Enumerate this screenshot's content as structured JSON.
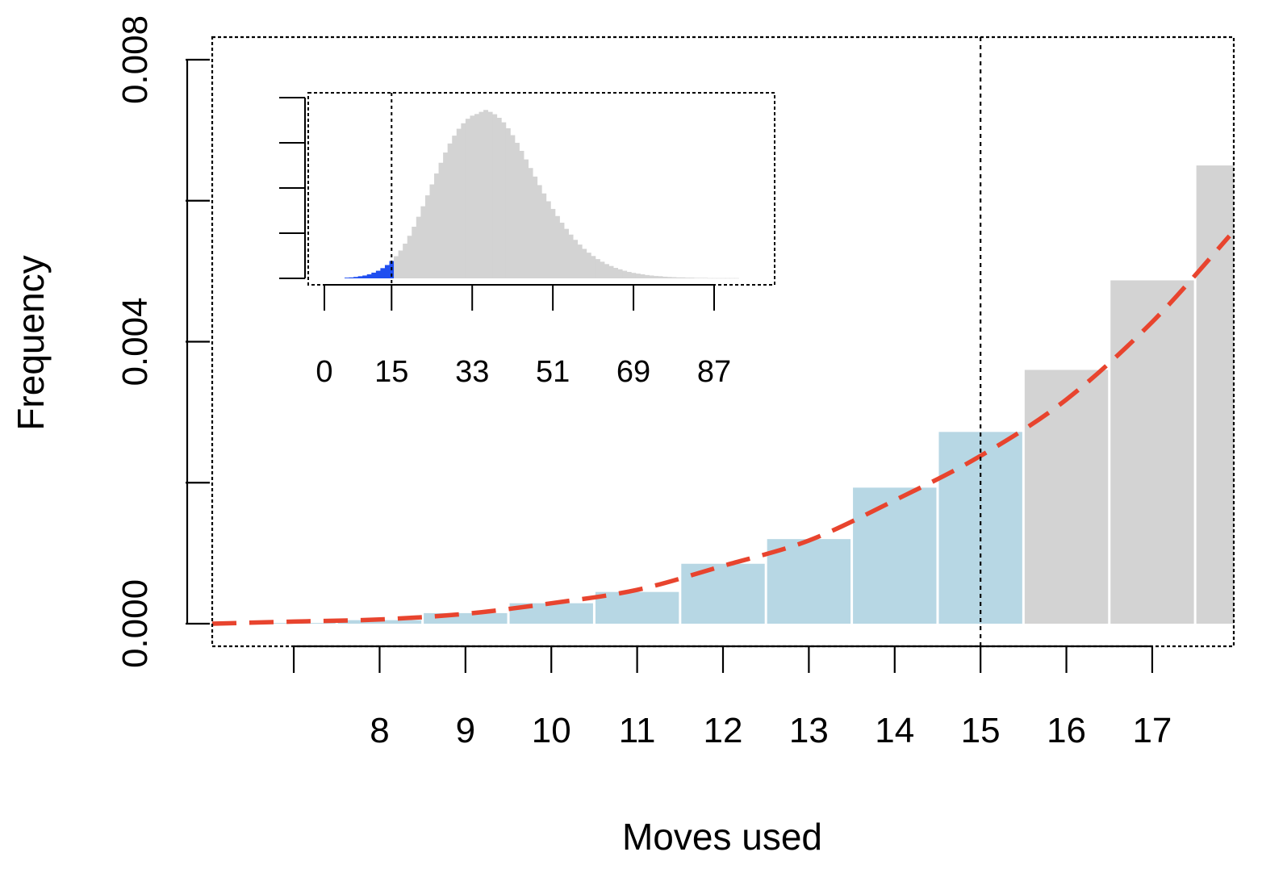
{
  "chart_data": [
    {
      "type": "bar",
      "xlabel": "Moves used",
      "ylabel": "Frequency",
      "xlim": [
        6.05,
        17.95
      ],
      "ylim": [
        0,
        0.008
      ],
      "xticks": [
        7,
        8,
        9,
        10,
        11,
        12,
        13,
        14,
        15,
        16,
        17
      ],
      "xtick_labels": [
        "",
        "8",
        "9",
        "10",
        "11",
        "12",
        "13",
        "14",
        "15",
        "16",
        "17"
      ],
      "yticks": [
        0,
        0.002,
        0.004,
        0.006,
        0.008
      ],
      "ytick_labels": [
        "0.000",
        "",
        "0.004",
        "",
        "0.008"
      ],
      "grid": false,
      "threshold_line": {
        "x": 15,
        "style": "dotted"
      },
      "colors": {
        "below_threshold": "#b7d7e4",
        "above_threshold": "#d3d3d3",
        "curve": "#e8442e"
      },
      "bars": [
        {
          "x": 7,
          "value": 1e-05,
          "group": "below"
        },
        {
          "x": 8,
          "value": 5e-05,
          "group": "below"
        },
        {
          "x": 9,
          "value": 0.00015,
          "group": "below"
        },
        {
          "x": 10,
          "value": 0.00029,
          "group": "below"
        },
        {
          "x": 11,
          "value": 0.00045,
          "group": "below"
        },
        {
          "x": 12,
          "value": 0.00085,
          "group": "below"
        },
        {
          "x": 13,
          "value": 0.0012,
          "group": "below"
        },
        {
          "x": 14,
          "value": 0.00193,
          "group": "below"
        },
        {
          "x": 15,
          "value": 0.00272,
          "group": "below"
        },
        {
          "x": 16,
          "value": 0.0036,
          "group": "above"
        },
        {
          "x": 17,
          "value": 0.00487,
          "group": "above"
        },
        {
          "x": 18,
          "value": 0.0065,
          "group": "above"
        }
      ],
      "fitted_curve": {
        "style": "dashed",
        "x": [
          6.05,
          7,
          8,
          9,
          10,
          11,
          12,
          13,
          14,
          15,
          16,
          17,
          17.9
        ],
        "y": [
          0.0,
          3e-05,
          6e-05,
          0.00014,
          0.00029,
          0.00048,
          0.00082,
          0.00118,
          0.00175,
          0.00238,
          0.00318,
          0.00428,
          0.0055
        ]
      }
    },
    {
      "type": "bar",
      "role": "inset",
      "xlim": [
        -5,
        103
      ],
      "xticks": [
        0,
        15,
        33,
        51,
        69,
        87
      ],
      "xtick_labels": [
        "0",
        "15",
        "33",
        "51",
        "69",
        "87"
      ],
      "threshold_line": {
        "x": 15,
        "style": "dotted"
      },
      "colors": {
        "below_threshold": "#1f4ef0",
        "above_threshold": "#d3d3d3"
      },
      "y_max": 0.077,
      "y_ticks": [
        0,
        0.019,
        0.038,
        0.057,
        0.076
      ],
      "bars_start_x": 5,
      "values": [
        0.0003,
        0.0004,
        0.0006,
        0.0009,
        0.0012,
        0.0017,
        0.0024,
        0.0032,
        0.0043,
        0.0056,
        0.0073,
        0.0093,
        0.0117,
        0.0146,
        0.0179,
        0.0217,
        0.0259,
        0.0303,
        0.0349,
        0.0395,
        0.0441,
        0.0486,
        0.0529,
        0.0567,
        0.06,
        0.0629,
        0.0652,
        0.0671,
        0.0684,
        0.0691,
        0.07,
        0.0708,
        0.07,
        0.069,
        0.0675,
        0.0656,
        0.0631,
        0.0602,
        0.057,
        0.0536,
        0.05,
        0.0464,
        0.0428,
        0.0392,
        0.0357,
        0.0324,
        0.0292,
        0.0262,
        0.0234,
        0.0208,
        0.0184,
        0.0162,
        0.0142,
        0.0124,
        0.0108,
        0.0094,
        0.0081,
        0.007,
        0.006,
        0.0052,
        0.0044,
        0.0038,
        0.0032,
        0.0027,
        0.0023,
        0.002,
        0.0017,
        0.0014,
        0.0012,
        0.001,
        0.0009,
        0.0007,
        0.0006,
        0.0005,
        0.0004,
        0.0004,
        0.0003,
        0.0003,
        0.0002,
        0.0002,
        0.0002,
        0.0001,
        0.0001,
        0.0001,
        0.0001,
        0.0001,
        0.0001,
        0.0001
      ]
    }
  ]
}
